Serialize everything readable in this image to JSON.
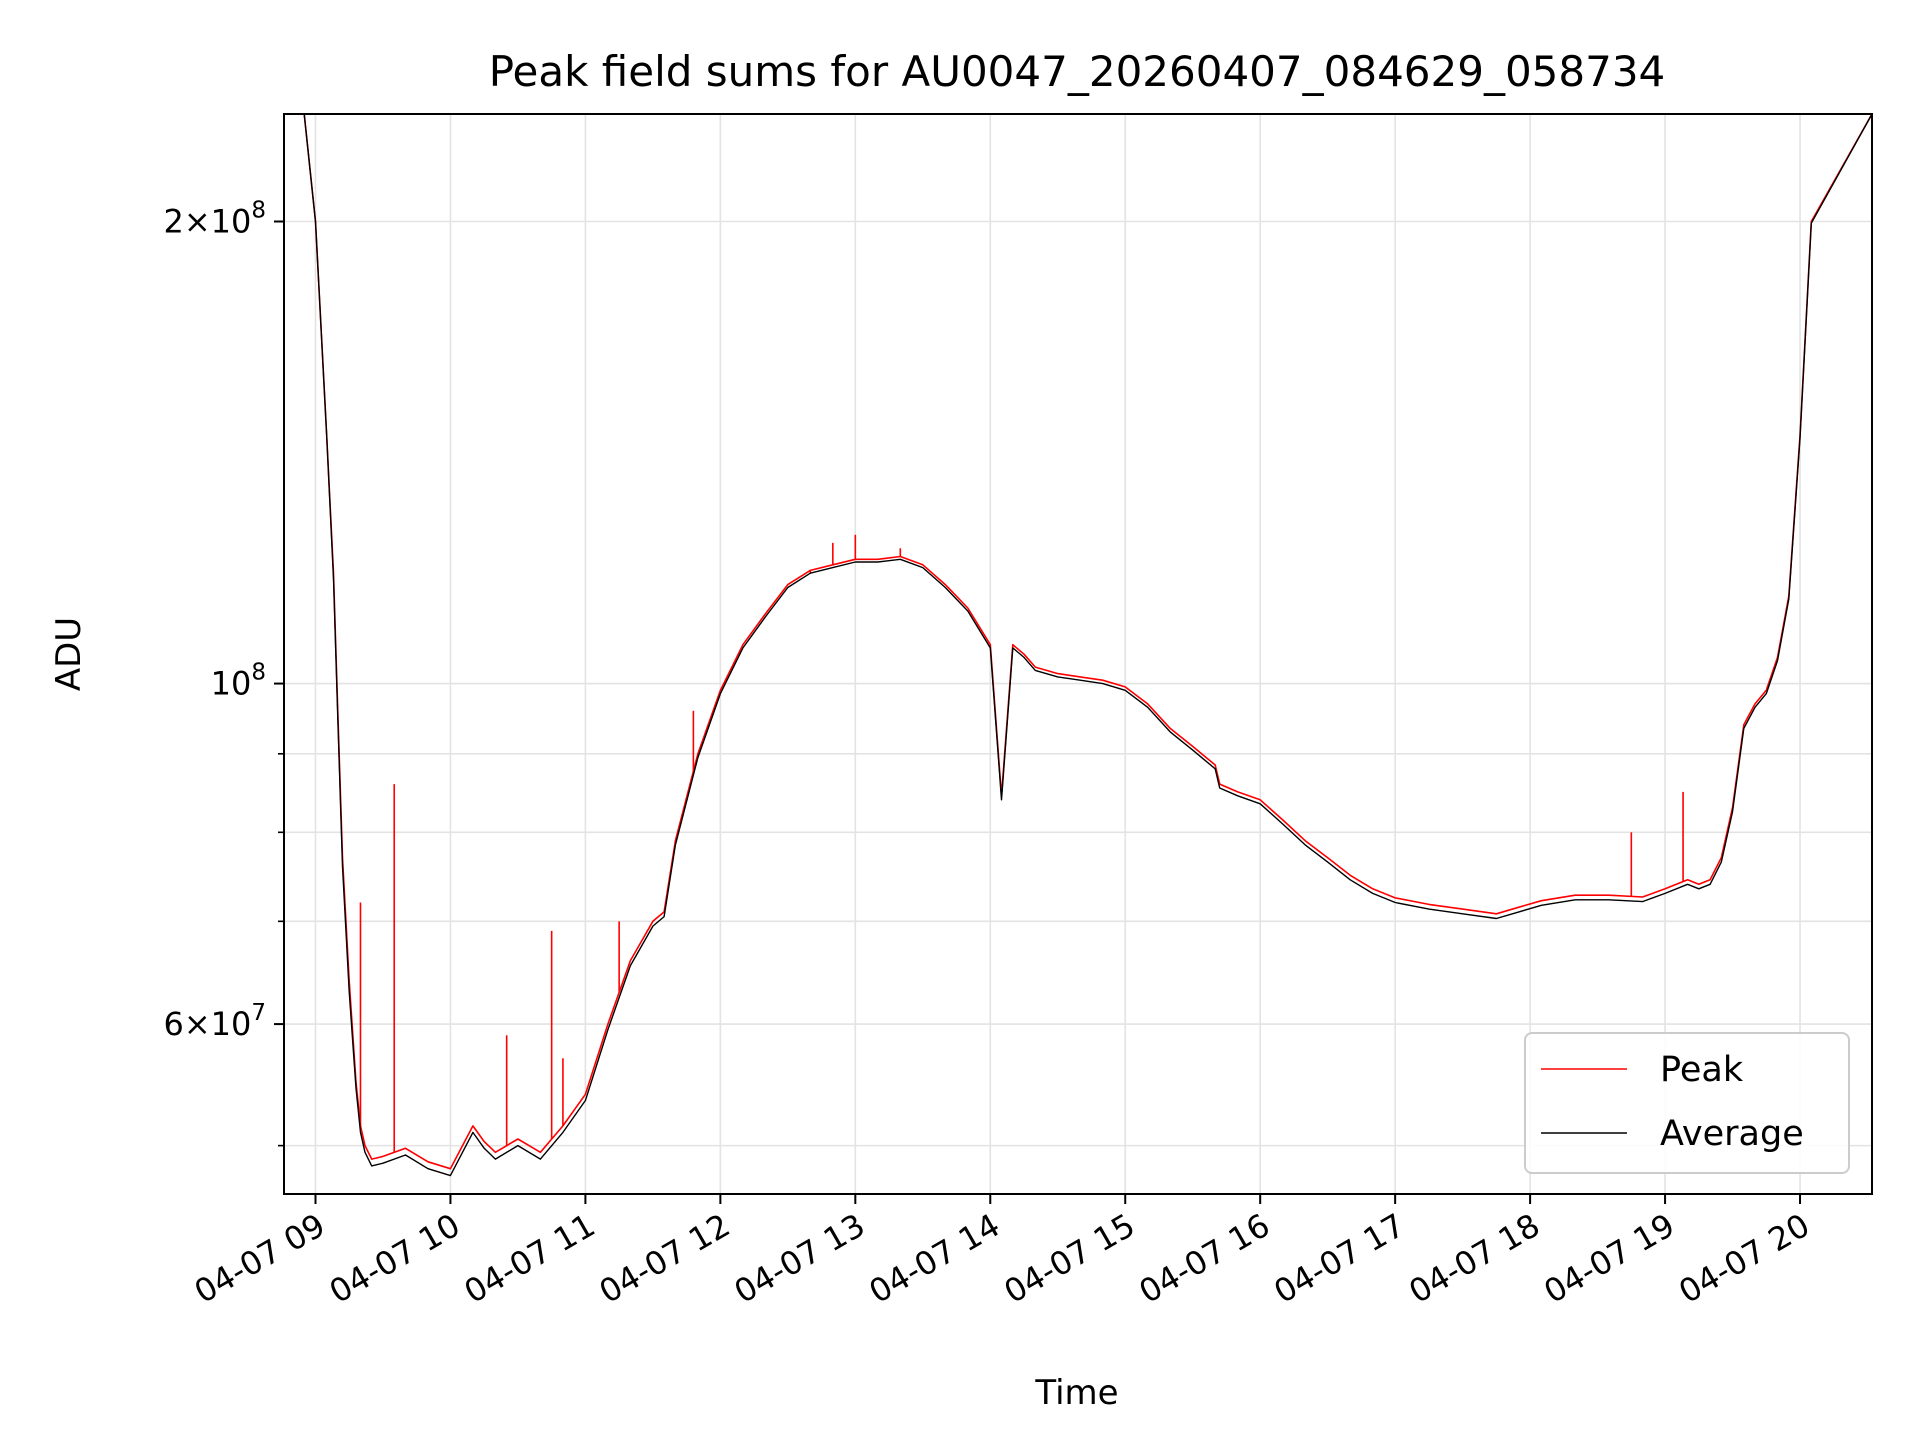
{
  "chart_data": {
    "type": "line",
    "title": "Peak field sums for AU0047_20260407_084629_058734",
    "xlabel": "Time",
    "ylabel": "ADU",
    "yscale": "log",
    "xlim": [
      "04-07 08:46",
      "04-07 20:32"
    ],
    "ylim": [
      46500000,
      235000000
    ],
    "grid": true,
    "legend": "lower-right",
    "x_ticks": [
      "04-07 09",
      "04-07 10",
      "04-07 11",
      "04-07 12",
      "04-07 13",
      "04-07 14",
      "04-07 15",
      "04-07 16",
      "04-07 17",
      "04-07 18",
      "04-07 19",
      "04-07 20"
    ],
    "y_ticks": [
      {
        "value": 200000000,
        "label": "2×10^8",
        "mantissa": "2",
        "exp": "8"
      },
      {
        "value": 100000000,
        "label": "10^8",
        "mantissa": "",
        "exp": "8"
      },
      {
        "value": 60000000,
        "label": "6×10^7",
        "mantissa": "6",
        "exp": "7"
      }
    ],
    "y_minor_ticks": [
      50000000,
      70000000,
      80000000,
      90000000
    ],
    "series": [
      {
        "name": "Peak",
        "color": "#ff0000",
        "x": [
          "04-07 08:46",
          "04-07 08:55",
          "04-07 09:00",
          "04-07 09:05",
          "04-07 09:08",
          "09:10",
          "04-07 09:12",
          "04-07 09:15",
          "04-07 09:18",
          "04-07 09:20",
          "04-07 09:22",
          "04-07 09:25",
          "04-07 09:30",
          "04-07 09:40",
          "04-07 09:50",
          "04-07 10:00",
          "04-07 10:10",
          "04-07 10:15",
          "04-07 10:20",
          "04-07 10:30",
          "04-07 10:40",
          "04-07 10:50",
          "04-07 11:00",
          "04-07 11:10",
          "04-07 11:20",
          "04-07 11:30",
          "04-07 11:35",
          "04-07 11:40",
          "04-07 11:50",
          "04-07 12:00",
          "04-07 12:10",
          "04-07 12:20",
          "04-07 12:30",
          "04-07 12:40",
          "04-07 12:50",
          "04-07 13:00",
          "04-07 13:10",
          "04-07 13:20",
          "04-07 13:30",
          "04-07 13:40",
          "04-07 13:50",
          "04-07 14:00",
          "04-07 14:05",
          "04-07 14:10",
          "04-07 14:15",
          "04-07 14:20",
          "04-07 14:30",
          "04-07 14:40",
          "04-07 14:50",
          "04-07 15:00",
          "04-07 15:10",
          "04-07 15:20",
          "04-07 15:30",
          "04-07 15:40",
          "04-07 15:42",
          "04-07 15:50",
          "04-07 16:00",
          "04-07 16:10",
          "04-07 16:20",
          "04-07 16:30",
          "04-07 16:40",
          "04-07 16:50",
          "04-07 17:00",
          "04-07 17:15",
          "04-07 17:30",
          "04-07 17:45",
          "04-07 17:55",
          "04-07 18:05",
          "04-07 18:20",
          "04-07 18:35",
          "04-07 18:50",
          "04-07 19:00",
          "04-07 19:10",
          "04-07 19:15",
          "04-07 19:20",
          "04-07 19:25",
          "04-07 19:30",
          "04-07 19:35",
          "04-07 19:40",
          "04-07 19:45",
          "04-07 19:50",
          "04-07 19:55",
          "04-07 20:00",
          "04-07 20:05",
          "04-07 20:32"
        ],
        "values": [
          235000000,
          235000000,
          200000000,
          145000000,
          118000000,
          95000000,
          77000000,
          64000000,
          55000000,
          51500000,
          50000000,
          49000000,
          49200000,
          49800000,
          48800000,
          48300000,
          51500000,
          50300000,
          49500000,
          50500000,
          49500000,
          51500000,
          54000000,
          60000000,
          66000000,
          70000000,
          71000000,
          79000000,
          90000000,
          99000000,
          106000000,
          111000000,
          116000000,
          118500000,
          119500000,
          120500000,
          120500000,
          121000000,
          119500000,
          116000000,
          112000000,
          106000000,
          84500000,
          106000000,
          104500000,
          102500000,
          101500000,
          101000000,
          100500000,
          99500000,
          97000000,
          93500000,
          91000000,
          88500000,
          86000000,
          85000000,
          84000000,
          81500000,
          79000000,
          77000000,
          75000000,
          73500000,
          72500000,
          71800000,
          71300000,
          70800000,
          71500000,
          72200000,
          72800000,
          72800000,
          72600000,
          73500000,
          74500000,
          74000000,
          74500000,
          77000000,
          83000000,
          94000000,
          97000000,
          99000000,
          104000000,
          114000000,
          145000000,
          200000000,
          235000000
        ],
        "spikes": [
          {
            "x": "04-07 09:35",
            "y": 86000000
          },
          {
            "x": "04-07 09:20",
            "y": 72000000
          },
          {
            "x": "04-07 10:25",
            "y": 59000000
          },
          {
            "x": "04-07 10:45",
            "y": 69000000
          },
          {
            "x": "04-07 10:50",
            "y": 57000000
          },
          {
            "x": "04-07 11:15",
            "y": 70000000
          },
          {
            "x": "04-07 11:48",
            "y": 96000000
          },
          {
            "x": "04-07 12:40",
            "y": 118000000
          },
          {
            "x": "04-07 12:50",
            "y": 123500000
          },
          {
            "x": "04-07 13:00",
            "y": 125000000
          },
          {
            "x": "04-07 13:20",
            "y": 122500000
          },
          {
            "x": "04-07 18:45",
            "y": 80000000
          },
          {
            "x": "04-07 19:08",
            "y": 85000000
          }
        ]
      },
      {
        "name": "Average",
        "color": "#000000",
        "x": [
          "04-07 08:46",
          "04-07 08:55",
          "04-07 09:00",
          "04-07 09:05",
          "04-07 09:08",
          "09:10",
          "04-07 09:12",
          "04-07 09:15",
          "04-07 09:18",
          "04-07 09:20",
          "04-07 09:22",
          "04-07 09:25",
          "04-07 09:30",
          "04-07 09:40",
          "04-07 09:50",
          "04-07 10:00",
          "04-07 10:10",
          "04-07 10:15",
          "04-07 10:20",
          "04-07 10:30",
          "04-07 10:40",
          "04-07 10:50",
          "04-07 11:00",
          "04-07 11:10",
          "04-07 11:20",
          "04-07 11:30",
          "04-07 11:35",
          "04-07 11:40",
          "04-07 11:50",
          "04-07 12:00",
          "04-07 12:10",
          "04-07 12:20",
          "04-07 12:30",
          "04-07 12:40",
          "04-07 12:50",
          "04-07 13:00",
          "04-07 13:10",
          "04-07 13:20",
          "04-07 13:30",
          "04-07 13:40",
          "04-07 13:50",
          "04-07 14:00",
          "04-07 14:05",
          "04-07 14:10",
          "04-07 14:15",
          "04-07 14:20",
          "04-07 14:30",
          "04-07 14:40",
          "04-07 14:50",
          "04-07 15:00",
          "04-07 15:10",
          "04-07 15:20",
          "04-07 15:30",
          "04-07 15:40",
          "04-07 15:42",
          "04-07 15:50",
          "04-07 16:00",
          "04-07 16:10",
          "04-07 16:20",
          "04-07 16:30",
          "04-07 16:40",
          "04-07 16:50",
          "04-07 17:00",
          "04-07 17:15",
          "04-07 17:30",
          "04-07 17:45",
          "04-07 17:55",
          "04-07 18:05",
          "04-07 18:20",
          "04-07 18:35",
          "04-07 18:50",
          "04-07 19:00",
          "04-07 19:10",
          "04-07 19:15",
          "04-07 19:20",
          "04-07 19:25",
          "04-07 19:30",
          "04-07 19:35",
          "04-07 19:40",
          "04-07 19:45",
          "04-07 19:50",
          "04-07 19:55",
          "04-07 20:00",
          "04-07 20:05",
          "04-07 20:32"
        ],
        "values": [
          235000000,
          235000000,
          200000000,
          145000000,
          117000000,
          94000000,
          76000000,
          63000000,
          54500000,
          51000000,
          49500000,
          48500000,
          48700000,
          49300000,
          48300000,
          47800000,
          51000000,
          49800000,
          49000000,
          50000000,
          49000000,
          51000000,
          53500000,
          59500000,
          65500000,
          69500000,
          70500000,
          78500000,
          89500000,
          98500000,
          105500000,
          110500000,
          115500000,
          118000000,
          119000000,
          120000000,
          120000000,
          120500000,
          119000000,
          115500000,
          111500000,
          105500000,
          84000000,
          105500000,
          104000000,
          102000000,
          101000000,
          100500000,
          100000000,
          99000000,
          96500000,
          93000000,
          90500000,
          88000000,
          85500000,
          84500000,
          83500000,
          81000000,
          78500000,
          76500000,
          74500000,
          73000000,
          72000000,
          71300000,
          70800000,
          70300000,
          71000000,
          71700000,
          72300000,
          72300000,
          72100000,
          73000000,
          74000000,
          73500000,
          74000000,
          76500000,
          82500000,
          93500000,
          96500000,
          98500000,
          103500000,
          113500000,
          144500000,
          199500000,
          235000000
        ]
      }
    ]
  }
}
